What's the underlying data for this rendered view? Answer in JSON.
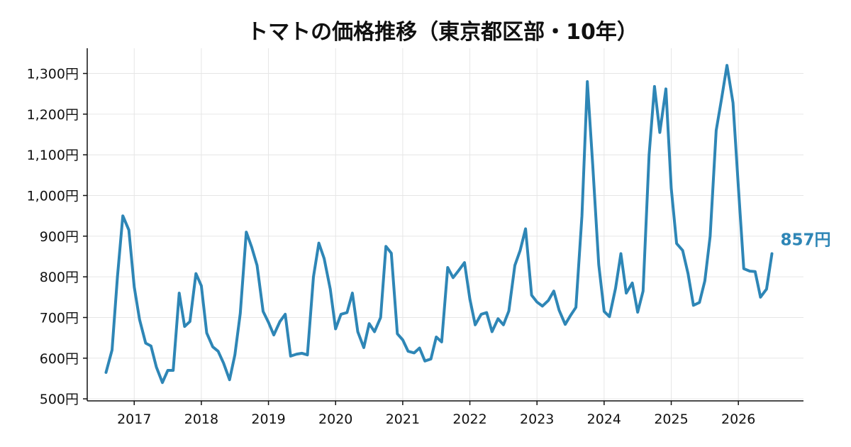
{
  "chart_data": {
    "type": "line",
    "title": "トマトの価格推移（東京都区部・10年）",
    "xlabel": "",
    "ylabel": "",
    "x_unit": "year",
    "xlim": [
      2016.3,
      2026.97
    ],
    "ylim": [
      495,
      1362
    ],
    "y_ticks": [
      500,
      600,
      700,
      800,
      900,
      1000,
      1100,
      1200,
      1300
    ],
    "y_tick_labels": [
      "500円",
      "600円",
      "700円",
      "800円",
      "900円",
      "1,000円",
      "1,100円",
      "1,200円",
      "1,300円"
    ],
    "x_ticks": [
      2017,
      2018,
      2019,
      2020,
      2021,
      2022,
      2023,
      2024,
      2025,
      2026
    ],
    "x_tick_labels": [
      "2017",
      "2018",
      "2019",
      "2020",
      "2021",
      "2022",
      "2023",
      "2024",
      "2025",
      "2026"
    ],
    "grid": true,
    "colors": {
      "series": "#2e86b6",
      "axis": "#111111",
      "grid": "#e6e6e6"
    },
    "end_label": "857円",
    "series": [
      {
        "points": [
          [
            2016.58,
            565
          ],
          [
            2016.67,
            620
          ],
          [
            2016.75,
            800
          ],
          [
            2016.83,
            950
          ],
          [
            2016.92,
            915
          ],
          [
            2017.0,
            775
          ],
          [
            2017.08,
            695
          ],
          [
            2017.17,
            637
          ],
          [
            2017.25,
            630
          ],
          [
            2017.33,
            578
          ],
          [
            2017.42,
            540
          ],
          [
            2017.5,
            570
          ],
          [
            2017.58,
            570
          ],
          [
            2017.67,
            760
          ],
          [
            2017.75,
            678
          ],
          [
            2017.83,
            690
          ],
          [
            2017.92,
            808
          ],
          [
            2018.0,
            778
          ],
          [
            2018.08,
            662
          ],
          [
            2018.17,
            628
          ],
          [
            2018.25,
            617
          ],
          [
            2018.33,
            588
          ],
          [
            2018.42,
            547
          ],
          [
            2018.5,
            608
          ],
          [
            2018.58,
            710
          ],
          [
            2018.67,
            910
          ],
          [
            2018.75,
            873
          ],
          [
            2018.83,
            828
          ],
          [
            2018.92,
            715
          ],
          [
            2019.0,
            688
          ],
          [
            2019.08,
            657
          ],
          [
            2019.17,
            690
          ],
          [
            2019.25,
            708
          ],
          [
            2019.33,
            605
          ],
          [
            2019.42,
            610
          ],
          [
            2019.5,
            612
          ],
          [
            2019.58,
            608
          ],
          [
            2019.67,
            800
          ],
          [
            2019.75,
            883
          ],
          [
            2019.83,
            845
          ],
          [
            2019.92,
            770
          ],
          [
            2020.0,
            672
          ],
          [
            2020.08,
            708
          ],
          [
            2020.17,
            712
          ],
          [
            2020.25,
            760
          ],
          [
            2020.33,
            665
          ],
          [
            2020.42,
            626
          ],
          [
            2020.5,
            685
          ],
          [
            2020.58,
            665
          ],
          [
            2020.67,
            700
          ],
          [
            2020.75,
            875
          ],
          [
            2020.83,
            858
          ],
          [
            2020.92,
            660
          ],
          [
            2021.0,
            645
          ],
          [
            2021.08,
            617
          ],
          [
            2021.17,
            613
          ],
          [
            2021.25,
            625
          ],
          [
            2021.33,
            593
          ],
          [
            2021.42,
            598
          ],
          [
            2021.5,
            652
          ],
          [
            2021.58,
            640
          ],
          [
            2021.67,
            823
          ],
          [
            2021.75,
            798
          ],
          [
            2021.83,
            815
          ],
          [
            2021.92,
            835
          ],
          [
            2022.0,
            745
          ],
          [
            2022.08,
            682
          ],
          [
            2022.17,
            708
          ],
          [
            2022.25,
            712
          ],
          [
            2022.33,
            665
          ],
          [
            2022.42,
            697
          ],
          [
            2022.5,
            682
          ],
          [
            2022.58,
            716
          ],
          [
            2022.67,
            828
          ],
          [
            2022.75,
            865
          ],
          [
            2022.83,
            918
          ],
          [
            2022.92,
            755
          ],
          [
            2023.0,
            738
          ],
          [
            2023.08,
            728
          ],
          [
            2023.17,
            742
          ],
          [
            2023.25,
            765
          ],
          [
            2023.33,
            718
          ],
          [
            2023.42,
            683
          ],
          [
            2023.5,
            705
          ],
          [
            2023.58,
            725
          ],
          [
            2023.67,
            950
          ],
          [
            2023.75,
            1280
          ],
          [
            2023.83,
            1075
          ],
          [
            2023.92,
            830
          ],
          [
            2024.0,
            715
          ],
          [
            2024.08,
            702
          ],
          [
            2024.17,
            772
          ],
          [
            2024.25,
            857
          ],
          [
            2024.33,
            760
          ],
          [
            2024.42,
            785
          ],
          [
            2024.5,
            713
          ],
          [
            2024.58,
            765
          ],
          [
            2024.67,
            1100
          ],
          [
            2024.75,
            1268
          ],
          [
            2024.83,
            1155
          ],
          [
            2024.92,
            1262
          ],
          [
            2025.0,
            1018
          ],
          [
            2025.08,
            882
          ],
          [
            2025.17,
            865
          ],
          [
            2025.25,
            808
          ],
          [
            2025.33,
            730
          ],
          [
            2025.42,
            737
          ],
          [
            2025.5,
            790
          ],
          [
            2025.58,
            900
          ],
          [
            2025.67,
            1160
          ],
          [
            2025.75,
            1238
          ],
          [
            2025.83,
            1320
          ],
          [
            2025.92,
            1228
          ],
          [
            2026.0,
            1020
          ],
          [
            2026.08,
            820
          ],
          [
            2026.17,
            814
          ],
          [
            2026.25,
            813
          ],
          [
            2026.33,
            750
          ],
          [
            2026.42,
            770
          ],
          [
            2026.5,
            857
          ]
        ]
      }
    ]
  }
}
